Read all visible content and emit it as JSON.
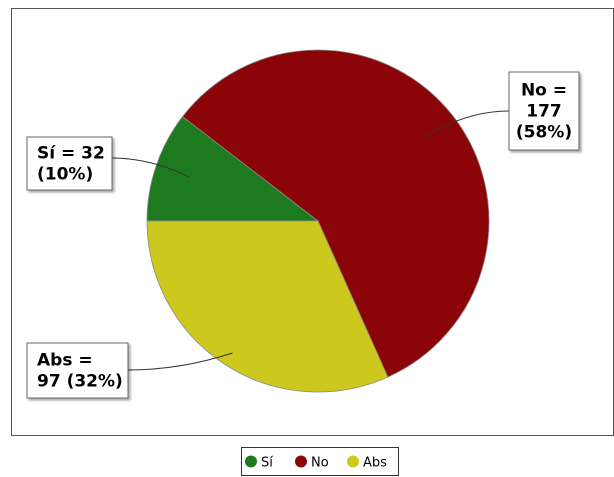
{
  "chart_data": {
    "type": "pie",
    "title": "",
    "slices": [
      {
        "name": "Sí",
        "value": 32,
        "percent": 10,
        "color": "#1e7a1e"
      },
      {
        "name": "No",
        "value": 177,
        "percent": 58,
        "color": "#8b0508"
      },
      {
        "name": "Abs",
        "value": 97,
        "percent": 32,
        "color": "#cdc81e"
      }
    ],
    "labels": [
      {
        "slice": "Sí",
        "lines": [
          "Sí = 32",
          "(10%)"
        ]
      },
      {
        "slice": "No",
        "lines": [
          "No =",
          "177",
          "(58%)"
        ]
      },
      {
        "slice": "Abs",
        "lines": [
          "Abs =",
          "97 (32%)"
        ]
      }
    ],
    "legend": {
      "position": "bottom",
      "entries": [
        "Sí",
        "No",
        "Abs"
      ]
    }
  }
}
